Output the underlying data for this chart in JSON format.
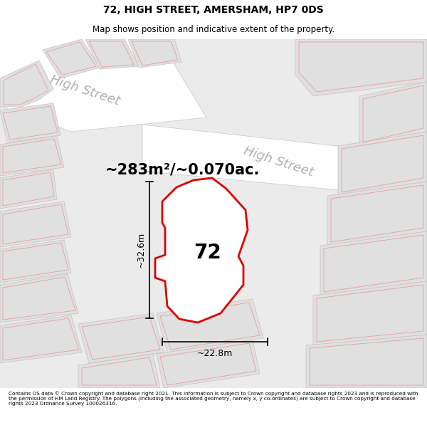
{
  "title": "72, HIGH STREET, AMERSHAM, HP7 0DS",
  "subtitle": "Map shows position and indicative extent of the property.",
  "footer": "Contains OS data © Crown copyright and database right 2021. This information is subject to Crown copyright and database rights 2023 and is reproduced with the permission of HM Land Registry. The polygons (including the associated geometry, namely x, y co-ordinates) are subject to Crown copyright and database rights 2023 Ordnance Survey 100026316.",
  "area_label": "~283m²/~0.070ac.",
  "number_label": "72",
  "dim_vertical": "~32.6m",
  "dim_horizontal": "~22.8m",
  "street_label1": "High Street",
  "street_label2": "High Street",
  "bg_color": "#ffffff",
  "map_bg": "#ebebeb",
  "road_fill": "#ffffff",
  "highlight_fill": "#ffffff",
  "highlight_edge": "#dd0000",
  "pink_edge": "#e8a0a0",
  "gray_edge": "#c8c8c8",
  "building_fill": "#e0e0e0",
  "dim_color": "#000000",
  "text_color": "#000000",
  "street_text_color": "#b0b0b0"
}
